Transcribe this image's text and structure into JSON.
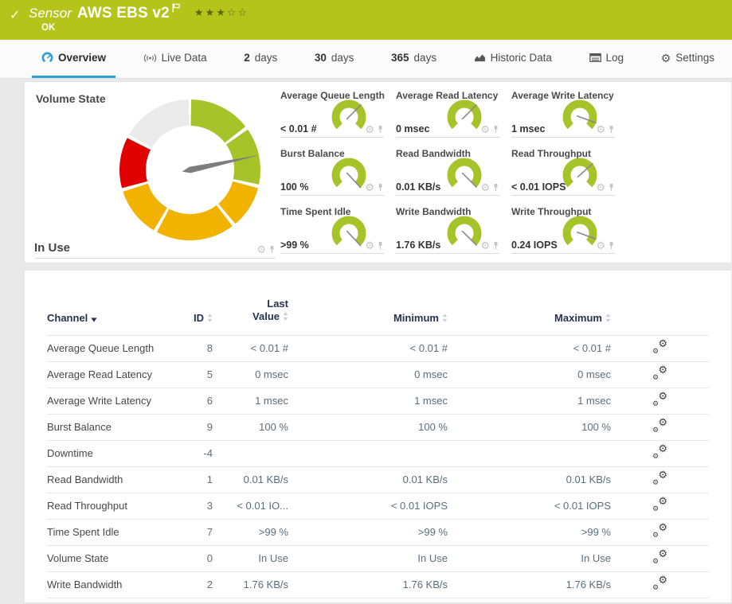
{
  "header": {
    "status_icon": "check-icon",
    "kind_label": "Sensor",
    "title": "AWS EBS v2",
    "flag_icon": "flag-icon",
    "rating": {
      "filled": 3,
      "total": 5
    },
    "status_text": "OK"
  },
  "tabs": [
    {
      "label": "Overview",
      "icon": "gauge-icon",
      "active": true
    },
    {
      "label": "Live Data",
      "icon": "live-data-icon"
    },
    {
      "num": "2",
      "label": "days"
    },
    {
      "num": "30",
      "label": "days"
    },
    {
      "num": "365",
      "label": "days"
    },
    {
      "label": "Historic Data",
      "icon": "historic-data-icon"
    },
    {
      "label": "Log",
      "icon": "log-icon"
    },
    {
      "label": "Settings",
      "icon": "settings-icon"
    }
  ],
  "colors": {
    "header_green": "#b5c41a",
    "gauge_green": "#a6c32a",
    "gauge_yellow": "#f1b200",
    "gauge_red": "#e00000",
    "gauge_gray": "#ebebeb",
    "needle_gray": "#7d7d7d",
    "accent_blue": "#2da0d3",
    "table_header_navy": "#24344d"
  },
  "primary_gauge": {
    "title": "Volume State",
    "value": "In Use",
    "needle_deg": 78,
    "segments": [
      {
        "from": 1,
        "to": 52,
        "color": "#a6c32a"
      },
      {
        "from": 55,
        "to": 102,
        "color": "#a6c32a"
      },
      {
        "from": 105,
        "to": 140,
        "color": "#f1b200"
      },
      {
        "from": 143,
        "to": 208,
        "color": "#f1b200"
      },
      {
        "from": 211,
        "to": 252,
        "color": "#f1b200"
      },
      {
        "from": 255,
        "to": 297,
        "color": "#e00000"
      },
      {
        "from": 300,
        "to": 359,
        "color": "#ebebeb"
      }
    ]
  },
  "mini_gauges": [
    {
      "title": "Average Queue Length",
      "value": "< 0.01 #",
      "needle_deg": 45
    },
    {
      "title": "Average Read Latency",
      "value": "0 msec",
      "needle_deg": 45
    },
    {
      "title": "Average Write Latency",
      "value": "1 msec",
      "needle_deg": 110
    },
    {
      "title": "Burst Balance",
      "value": "100 %",
      "needle_deg": 137
    },
    {
      "title": "Read Bandwidth",
      "value": "0.01 KB/s",
      "needle_deg": 135
    },
    {
      "title": "Read Throughput",
      "value": "< 0.01 IOPS",
      "needle_deg": 48
    },
    {
      "title": "Time Spent Idle",
      "value": ">99 %",
      "needle_deg": 137
    },
    {
      "title": "Write Bandwidth",
      "value": "1.76 KB/s",
      "needle_deg": 135
    },
    {
      "title": "Write Throughput",
      "value": "0.24 IOPS",
      "needle_deg": 110
    }
  ],
  "table": {
    "columns": {
      "channel": "Channel",
      "id": "ID",
      "last_line1": "Last",
      "last_line2": "Value",
      "min": "Minimum",
      "max": "Maximum"
    },
    "rows": [
      {
        "channel": "Average Queue Length",
        "id": "8",
        "last": "< 0.01 #",
        "min": "< 0.01 #",
        "max": "< 0.01 #"
      },
      {
        "channel": "Average Read Latency",
        "id": "5",
        "last": "0 msec",
        "min": "0 msec",
        "max": "0 msec"
      },
      {
        "channel": "Average Write Latency",
        "id": "6",
        "last": "1 msec",
        "min": "1 msec",
        "max": "1 msec"
      },
      {
        "channel": "Burst Balance",
        "id": "9",
        "last": "100 %",
        "min": "100 %",
        "max": "100 %"
      },
      {
        "channel": "Downtime",
        "id": "-4",
        "last": "",
        "min": "",
        "max": ""
      },
      {
        "channel": "Read Bandwidth",
        "id": "1",
        "last": "0.01 KB/s",
        "min": "0.01 KB/s",
        "max": "0.01 KB/s"
      },
      {
        "channel": "Read Throughput",
        "id": "3",
        "last": "< 0.01 IO...",
        "min": "< 0.01 IOPS",
        "max": "< 0.01 IOPS"
      },
      {
        "channel": "Time Spent Idle",
        "id": "7",
        "last": ">99 %",
        "min": ">99 %",
        "max": ">99 %"
      },
      {
        "channel": "Volume State",
        "id": "0",
        "last": "In Use",
        "min": "In Use",
        "max": "In Use"
      },
      {
        "channel": "Write Bandwidth",
        "id": "2",
        "last": "1.76 KB/s",
        "min": "1.76 KB/s",
        "max": "1.76 KB/s"
      }
    ]
  }
}
